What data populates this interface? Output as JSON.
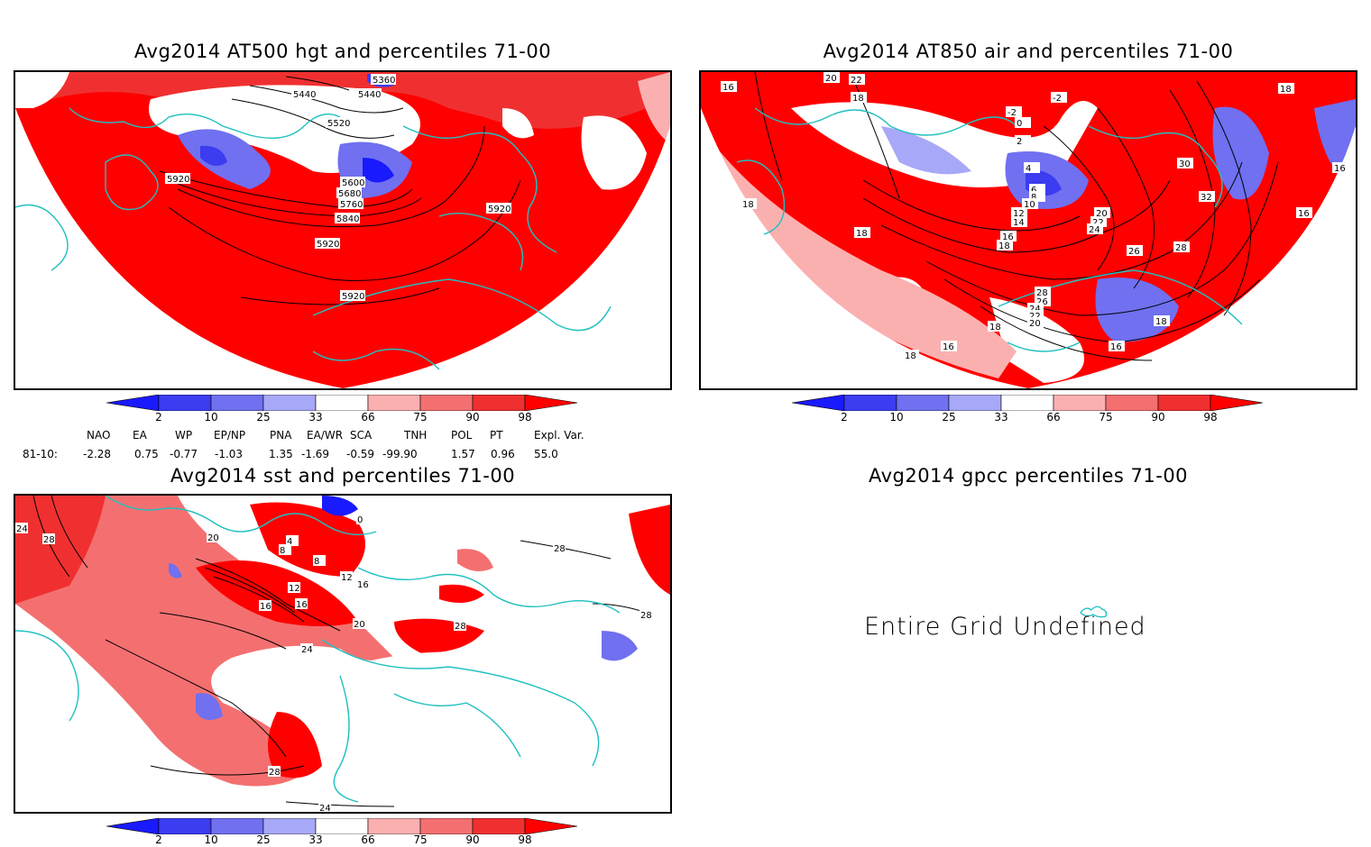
{
  "panels": [
    {
      "id": "hgt",
      "title": "Avg2014 AT500 hgt and percentiles 71-00",
      "contour_labels": [
        "5360",
        "5440",
        "5440",
        "5520",
        "5600",
        "5680",
        "5760",
        "5840",
        "5920",
        "5920",
        "5920",
        "5920"
      ]
    },
    {
      "id": "air",
      "title": "Avg2014 AT850 air and percentiles 71-00",
      "contour_labels": [
        "16",
        "20",
        "22",
        "18",
        "-2",
        "-2",
        "0",
        "2",
        "4",
        "6",
        "8",
        "10",
        "12",
        "14",
        "16",
        "18",
        "18",
        "18",
        "20",
        "22",
        "24",
        "26",
        "28",
        "30",
        "32",
        "28",
        "26",
        "24",
        "22",
        "20",
        "18",
        "16",
        "16",
        "18",
        "16",
        "18",
        "16",
        "18"
      ]
    },
    {
      "id": "sst",
      "title": "Avg2014 sst and percentiles 71-00",
      "contour_labels": [
        "24",
        "28",
        "20",
        "16",
        "12",
        "8",
        "4",
        "0",
        "8",
        "12",
        "16",
        "20",
        "24",
        "28",
        "28",
        "28",
        "24",
        "28",
        "16"
      ]
    },
    {
      "id": "gpcc",
      "title": "Avg2014 gpcc percentiles 71-00",
      "message": "Entire Grid Undefined"
    }
  ],
  "colorbar": {
    "labels": [
      "2",
      "10",
      "25",
      "33",
      "66",
      "75",
      "90",
      "98"
    ],
    "colors": [
      "#1a1aff",
      "#3c3cf0",
      "#7070f0",
      "#a8a8f8",
      "#ffffff",
      "#fbb0b0",
      "#f47070",
      "#f03030",
      "#ff0000"
    ]
  },
  "indices": {
    "row_label": "81-10:",
    "names": [
      "NAO",
      "EA",
      "WP",
      "EP/NP",
      "PNA",
      "EA/WR",
      "SCA",
      "TNH",
      "POL",
      "PT",
      "Expl. Var."
    ],
    "values": [
      "-2.28",
      "0.75",
      "-0.77",
      "-1.03",
      "1.35",
      "-1.69",
      "-0.59",
      "-99.90",
      "1.57",
      "0.96",
      "55.0"
    ]
  }
}
